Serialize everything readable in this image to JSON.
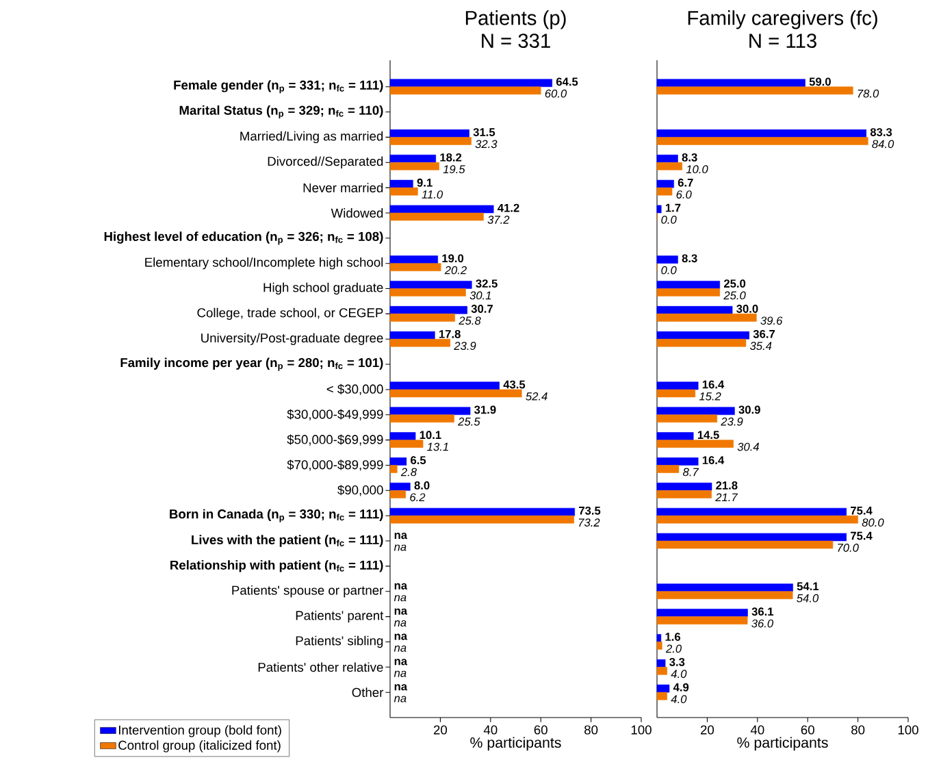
{
  "chart_data": [
    {
      "type": "bar",
      "orientation": "horizontal",
      "title": "Patients (p)",
      "subtitle": "N = 331",
      "xlabel": "% participants",
      "categories": [
        "**Female gender (n$_{p}$ = 331; n$_{fc}$ = 111)**",
        "**Marital Status (n$_{p}$ = 329; n$_{fc}$ = 110)**",
        "Married/Living as married",
        "Divorced//Separated",
        "Never married",
        "Widowed",
        "**Highest level of education (n$_{p}$ = 326; n$_{fc}$ = 108)**",
        "Elementary school/Incomplete high school",
        "High school graduate",
        "College, trade school, or CEGEP",
        "University/Post-graduate degree",
        "**Family income per year (n$_{p}$ = 280; n$_{fc}$ = 101)**",
        "< $30,000",
        "$30,000-$49,999",
        "$50,000-$69,999",
        "$70,000-$89,999",
        "$90,000",
        "**Born in Canada (n$_{p}$ = 330; n$_{fc}$ = 111)**",
        "**Lives with the patient (n$_{fc}$ = 111)**",
        "**Relationship with patient (n$_{fc}$ = 111)**",
        "Patients' spouse or partner",
        "Patients' parent",
        "Patients' sibling",
        "Patients' other relative",
        "Other"
      ],
      "series": [
        {
          "name": "Intervention group (bold font)",
          "color": "#0000ff",
          "values": [
            64.5,
            null,
            31.5,
            18.2,
            9.1,
            41.2,
            null,
            19.0,
            32.5,
            30.7,
            17.8,
            null,
            43.5,
            31.9,
            10.1,
            6.5,
            8.0,
            73.5,
            null,
            null,
            null,
            null,
            null,
            null,
            null
          ],
          "value_labels": [
            "64.5",
            null,
            "31.5",
            "18.2",
            "9.1",
            "41.2",
            null,
            "19.0",
            "32.5",
            "30.7",
            "17.8",
            null,
            "43.5",
            "31.9",
            "10.1",
            "6.5",
            "8.0",
            "73.5",
            "na",
            null,
            "na",
            "na",
            "na",
            "na",
            "na"
          ]
        },
        {
          "name": "Control group (italicized font)",
          "color": "#f07800",
          "values": [
            60.0,
            null,
            32.3,
            19.5,
            11.0,
            37.2,
            null,
            20.2,
            30.1,
            25.8,
            23.9,
            null,
            52.4,
            25.5,
            13.1,
            2.8,
            6.2,
            73.2,
            null,
            null,
            null,
            null,
            null,
            null,
            null
          ],
          "value_labels": [
            "60.0",
            null,
            "32.3",
            "19.5",
            "11.0",
            "37.2",
            null,
            "20.2",
            "30.1",
            "25.8",
            "23.9",
            null,
            "52.4",
            "25.5",
            "13.1",
            "2.8",
            "6.2",
            "73.2",
            "na",
            null,
            "na",
            "na",
            "na",
            "na",
            "na"
          ]
        }
      ],
      "xlim": [
        0,
        100
      ],
      "xticks": [
        20,
        40,
        60,
        80,
        100
      ],
      "legend": "bottom left"
    },
    {
      "type": "bar",
      "orientation": "horizontal",
      "title": "Family caregivers (fc)",
      "subtitle": "N = 113",
      "xlabel": "% participants",
      "categories": [
        null,
        null,
        null,
        null,
        null,
        null,
        null,
        null,
        null,
        null,
        null,
        null,
        null,
        null,
        null,
        null,
        null,
        null,
        null,
        null,
        null,
        null,
        null,
        null,
        null
      ],
      "series": [
        {
          "color": "#0000ff",
          "values": [
            59.0,
            null,
            83.3,
            8.3,
            6.7,
            1.7,
            null,
            8.3,
            25.0,
            30.0,
            36.7,
            null,
            16.4,
            30.9,
            14.5,
            16.4,
            21.8,
            75.4,
            75.4,
            null,
            54.1,
            36.1,
            1.6,
            3.3,
            4.9
          ],
          "value_labels": [
            "59.0",
            null,
            "83.3",
            "8.3",
            "6.7",
            "1.7",
            null,
            "8.3",
            "25.0",
            "30.0",
            "36.7",
            null,
            "16.4",
            "30.9",
            "14.5",
            "16.4",
            "21.8",
            "75.4",
            "75.4",
            null,
            "54.1",
            "36.1",
            "1.6",
            "3.3",
            "4.9"
          ]
        },
        {
          "color": "#f07800",
          "values": [
            78.0,
            null,
            84.0,
            10.0,
            6.0,
            0.0,
            null,
            0.0,
            25.0,
            39.6,
            35.4,
            null,
            15.2,
            23.9,
            30.4,
            8.7,
            21.7,
            80.0,
            70.0,
            null,
            54.0,
            36.0,
            2.0,
            4.0,
            4.0
          ],
          "value_labels": [
            "78.0",
            null,
            "84.0",
            "10.0",
            "6.0",
            "0.0",
            null,
            "0.0",
            "25.0",
            "39.6",
            "35.4",
            null,
            "15.2",
            "23.9",
            "30.4",
            "8.7",
            "21.7",
            "80.0",
            "70.0",
            null,
            "54.0",
            "36.0",
            "2.0",
            "4.0",
            "4.0"
          ]
        }
      ],
      "xlim": [
        0,
        100
      ],
      "xticks": [
        20,
        40,
        60,
        80,
        100
      ],
      "tick_labels": "x"
    }
  ]
}
